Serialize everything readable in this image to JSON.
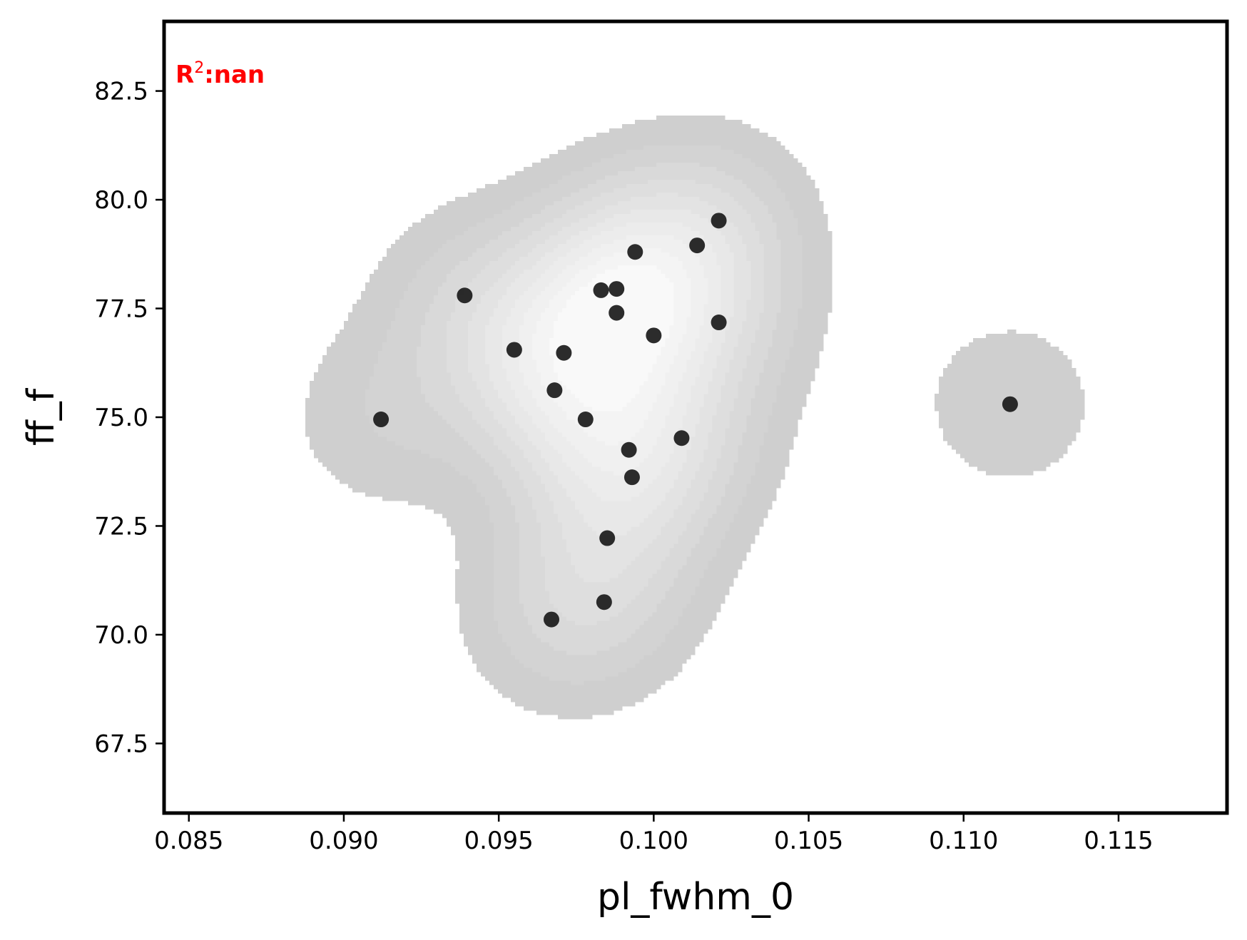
{
  "chart_data": {
    "type": "scatter",
    "xlabel": "pl_fwhm_0",
    "ylabel": "ff_f",
    "xlim": [
      0.0842,
      0.1185
    ],
    "ylim": [
      65.9,
      84.1
    ],
    "xticks": [
      "0.085",
      "0.090",
      "0.095",
      "0.100",
      "0.105",
      "0.110",
      "0.115"
    ],
    "yticks": [
      "67.5",
      "70.0",
      "72.5",
      "75.0",
      "77.5",
      "80.0",
      "82.5"
    ],
    "annotation": {
      "prefix": "R",
      "sup": "2",
      "suffix": ":nan",
      "color": "#ff0000"
    },
    "grid": false,
    "points": [
      {
        "x": 0.0912,
        "y": 74.95
      },
      {
        "x": 0.0939,
        "y": 77.8
      },
      {
        "x": 0.0955,
        "y": 76.55
      },
      {
        "x": 0.0967,
        "y": 70.35
      },
      {
        "x": 0.0968,
        "y": 75.62
      },
      {
        "x": 0.0971,
        "y": 76.48
      },
      {
        "x": 0.0978,
        "y": 74.95
      },
      {
        "x": 0.0983,
        "y": 77.92
      },
      {
        "x": 0.0984,
        "y": 70.75
      },
      {
        "x": 0.0985,
        "y": 72.22
      },
      {
        "x": 0.0988,
        "y": 77.95
      },
      {
        "x": 0.0988,
        "y": 77.4
      },
      {
        "x": 0.0992,
        "y": 74.25
      },
      {
        "x": 0.0993,
        "y": 73.62
      },
      {
        "x": 0.0994,
        "y": 78.8
      },
      {
        "x": 0.1,
        "y": 76.88
      },
      {
        "x": 0.1009,
        "y": 74.52
      },
      {
        "x": 0.1014,
        "y": 78.95
      },
      {
        "x": 0.1021,
        "y": 77.18
      },
      {
        "x": 0.1021,
        "y": 79.52
      },
      {
        "x": 0.1115,
        "y": 75.3
      }
    ],
    "density_colors": [
      "#cfcfcf",
      "#d3d3d3",
      "#d9d9d9",
      "#dedede",
      "#e3e3e3",
      "#e8e8e8",
      "#ececec",
      "#f0f0f0",
      "#f4f4f4",
      "#f9f9f9"
    ],
    "point_color": "#1a1a1a"
  }
}
